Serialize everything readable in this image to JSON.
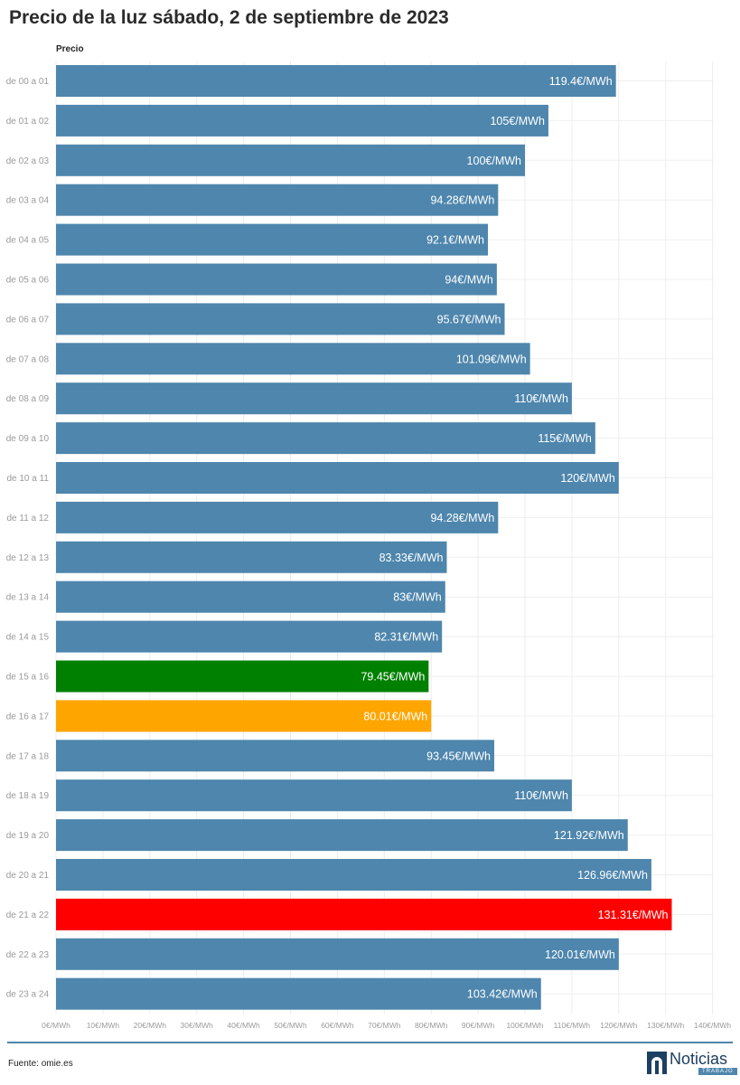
{
  "title": "Precio de la luz sábado, 2 de septiembre de 2023",
  "footer": {
    "source": "Fuente: omie.es",
    "logo_text": "Noticias",
    "logo_sub": "TRABAJO"
  },
  "chart_data": {
    "type": "bar",
    "orientation": "horizontal",
    "series_label": "Precio",
    "unit_suffix": "€/MWh",
    "xlim": [
      0,
      140
    ],
    "xticks": [
      "0€/MWh",
      "10€/MWh",
      "20€/MWh",
      "30€/MWh",
      "40€/MWh",
      "50€/MWh",
      "60€/MWh",
      "70€/MWh",
      "80€/MWh",
      "90€/MWh",
      "100€/MWh",
      "110€/MWh",
      "120€/MWh",
      "130€/MWh",
      "140€/MWh"
    ],
    "grid": "vertical gridlines",
    "categories": [
      "de 00 a 01",
      "de 01 a 02",
      "de 02 a 03",
      "de 03 a 04",
      "de 04 a 05",
      "de 05 a 06",
      "de 06 a 07",
      "de 07 a 08",
      "de 08 a 09",
      "de 09 a 10",
      "de 10 a 11",
      "de 11 a 12",
      "de 12 a 13",
      "de 13 a 14",
      "de 14 a 15",
      "de 15 a 16",
      "de 16 a 17",
      "de 17 a 18",
      "de 18 a 19",
      "de 19 a 20",
      "de 20 a 21",
      "de 21 a 22",
      "de 22 a 23",
      "de 23 a 24"
    ],
    "values": [
      119.4,
      105,
      100,
      94.28,
      92.1,
      94,
      95.67,
      101.09,
      110,
      115,
      120,
      94.28,
      83.33,
      83,
      82.31,
      79.45,
      80.01,
      93.45,
      110,
      121.92,
      126.96,
      131.31,
      120.01,
      103.42
    ],
    "value_labels": [
      "119.4€/MWh",
      "105€/MWh",
      "100€/MWh",
      "94.28€/MWh",
      "92.1€/MWh",
      "94€/MWh",
      "95.67€/MWh",
      "101.09€/MWh",
      "110€/MWh",
      "115€/MWh",
      "120€/MWh",
      "94.28€/MWh",
      "83.33€/MWh",
      "83€/MWh",
      "82.31€/MWh",
      "79.45€/MWh",
      "80.01€/MWh",
      "93.45€/MWh",
      "110€/MWh",
      "121.92€/MWh",
      "126.96€/MWh",
      "131.31€/MWh",
      "120.01€/MWh",
      "103.42€/MWh"
    ],
    "colors": {
      "default": "#4e86ad",
      "min": "#008000",
      "second_lowest": "#ffa500",
      "max": "#ff0000"
    },
    "bar_colors": [
      "#4e86ad",
      "#4e86ad",
      "#4e86ad",
      "#4e86ad",
      "#4e86ad",
      "#4e86ad",
      "#4e86ad",
      "#4e86ad",
      "#4e86ad",
      "#4e86ad",
      "#4e86ad",
      "#4e86ad",
      "#4e86ad",
      "#4e86ad",
      "#4e86ad",
      "#008000",
      "#ffa500",
      "#4e86ad",
      "#4e86ad",
      "#4e86ad",
      "#4e86ad",
      "#ff0000",
      "#4e86ad",
      "#4e86ad"
    ]
  }
}
